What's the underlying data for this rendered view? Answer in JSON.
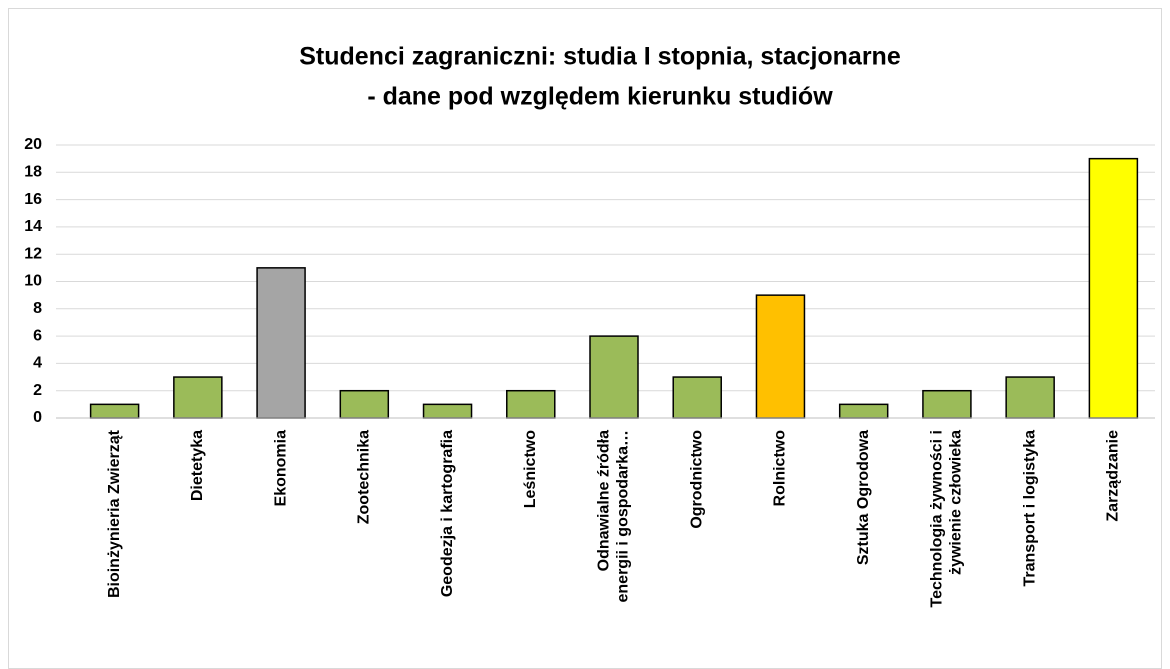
{
  "chart_data": {
    "type": "bar",
    "title": [
      "Studenci zagraniczni:  studia I stopnia, stacjonarne",
      "- dane pod względem kierunku studiów"
    ],
    "categories": [
      "Bioinżynieria Zwierząt",
      "Dietetyka",
      "Ekonomia",
      "Zootechnika",
      "Geodezja i kartografia",
      "Leśnictwo",
      "Odnawialne źródła\nenergii i gospodarka…",
      "Ogrodnictwo",
      "Rolnictwo",
      "Sztuka Ogrodowa",
      "Technologia żywności i\nżywienie człowieka",
      "Transport i logistyka",
      "Zarządzanie"
    ],
    "values": [
      1,
      3,
      11,
      2,
      1,
      2,
      6,
      3,
      9,
      1,
      2,
      3,
      19
    ],
    "colors": [
      "#9bbb59",
      "#9bbb59",
      "#a5a5a5",
      "#9bbb59",
      "#9bbb59",
      "#9bbb59",
      "#9bbb59",
      "#9bbb59",
      "#ffc000",
      "#9bbb59",
      "#9bbb59",
      "#9bbb59",
      "#ffff00"
    ],
    "ylim": [
      0,
      20
    ],
    "yticks": [
      0,
      2,
      4,
      6,
      8,
      10,
      12,
      14,
      16,
      18,
      20
    ],
    "grid": true
  }
}
